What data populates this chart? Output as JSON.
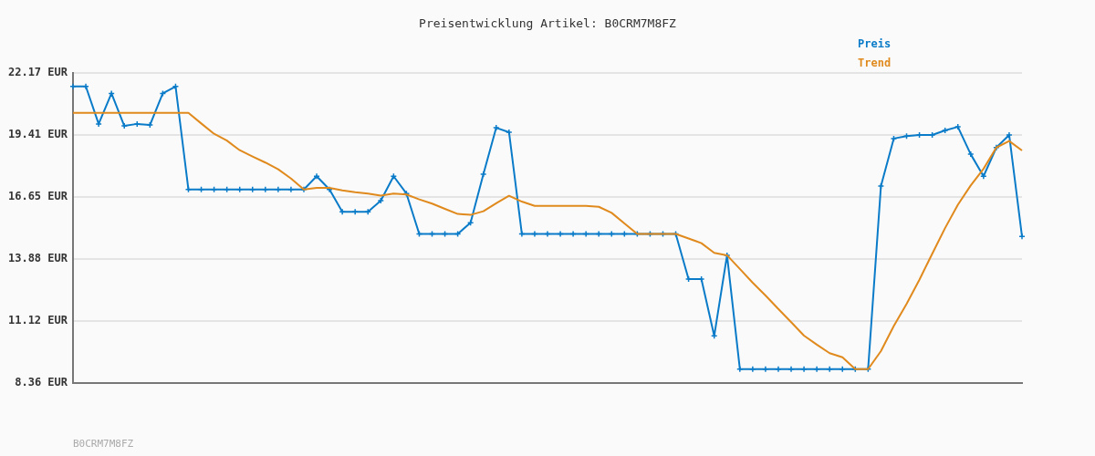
{
  "chart_data": {
    "type": "line",
    "title": "Preisentwicklung Artikel: B0CRM7M8FZ",
    "annotations": [
      "B0CRM7M8FZ"
    ],
    "categories": [
      null,
      null,
      null,
      null,
      null,
      null,
      null,
      null,
      null,
      null,
      null,
      null,
      null,
      null,
      null,
      null,
      null,
      null,
      null,
      null,
      null,
      null,
      null,
      null,
      null,
      null,
      null,
      null,
      null,
      null,
      null,
      null,
      null,
      null,
      null,
      null,
      null,
      null,
      null,
      null,
      null,
      null,
      null,
      null,
      null,
      null,
      null,
      null,
      null,
      null,
      null,
      null,
      null,
      null,
      null,
      null,
      null,
      null,
      null,
      null,
      null,
      null,
      null,
      null,
      null,
      null,
      null,
      null,
      null,
      null,
      null,
      null,
      null,
      null,
      null
    ],
    "series": [
      {
        "name": "Preis",
        "color": "#0a7bc8",
        "marker": "cross",
        "values": [
          21.57,
          21.57,
          19.9,
          21.26,
          19.81,
          19.9,
          19.85,
          21.26,
          21.57,
          16.98,
          16.98,
          16.98,
          16.98,
          16.98,
          16.98,
          16.98,
          16.98,
          16.98,
          16.98,
          17.57,
          16.98,
          15.99,
          15.99,
          15.99,
          16.48,
          17.57,
          16.8,
          15.0,
          15.0,
          15.0,
          15.0,
          15.5,
          17.66,
          19.73,
          19.53,
          15.0,
          15.0,
          15.0,
          15.0,
          15.0,
          15.0,
          15.0,
          15.0,
          15.0,
          15.0,
          15.0,
          15.0,
          15.0,
          12.99,
          12.99,
          10.46,
          14.05,
          8.98,
          8.98,
          8.98,
          8.98,
          8.98,
          8.98,
          8.98,
          8.98,
          8.98,
          8.98,
          8.98,
          17.13,
          19.25,
          19.36,
          19.41,
          19.41,
          19.61,
          19.77,
          18.55,
          17.57,
          18.85,
          19.41,
          14.89
        ]
      },
      {
        "name": "Trend",
        "color": "#e08a1e",
        "marker": "none",
        "values": [
          20.39,
          20.39,
          20.39,
          20.39,
          20.39,
          20.39,
          20.39,
          20.39,
          20.39,
          20.39,
          19.92,
          19.46,
          19.16,
          18.73,
          18.45,
          18.18,
          17.88,
          17.47,
          16.98,
          17.05,
          17.05,
          16.94,
          16.86,
          16.8,
          16.71,
          16.8,
          16.76,
          16.54,
          16.35,
          16.12,
          15.89,
          15.85,
          16.01,
          16.37,
          16.7,
          16.44,
          16.25,
          16.25,
          16.25,
          16.25,
          16.25,
          16.21,
          15.94,
          15.47,
          15.0,
          15.0,
          15.0,
          15.0,
          14.8,
          14.59,
          14.16,
          14.05,
          13.44,
          12.83,
          12.26,
          11.66,
          11.07,
          10.47,
          10.07,
          9.69,
          9.51,
          8.98,
          8.98,
          9.78,
          10.9,
          11.88,
          12.96,
          14.12,
          15.26,
          16.3,
          17.16,
          17.9,
          18.85,
          19.14,
          18.72
        ]
      }
    ],
    "ylim": [
      8.36,
      22.17
    ],
    "yticks": [
      {
        "value": 8.36,
        "label": "8.36 EUR"
      },
      {
        "value": 11.12,
        "label": "11.12 EUR"
      },
      {
        "value": 13.88,
        "label": "13.88 EUR"
      },
      {
        "value": 16.65,
        "label": "16.65 EUR"
      },
      {
        "value": 19.41,
        "label": "19.41 EUR"
      },
      {
        "value": 22.17,
        "label": "22.17 EUR"
      }
    ],
    "grid": "y",
    "legend": "top right",
    "tick_labels": "y"
  }
}
